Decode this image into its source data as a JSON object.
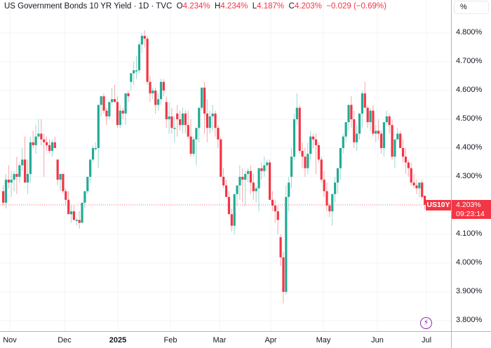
{
  "legend": {
    "title": "US Government Bonds 10 YR Yield · 1D · TVC",
    "open_label": "O",
    "open": "4.234%",
    "high_label": "H",
    "high": "4.234%",
    "low_label": "L",
    "low": "4.187%",
    "close_label": "C",
    "close": "4.203%",
    "change": "−0.029 (−0.69%)"
  },
  "scale_button": "%",
  "last_price": {
    "symbol": "US10Y",
    "price": "4.203%",
    "countdown": "09:23:14"
  },
  "colors": {
    "up": "#22ab94",
    "down": "#f23645",
    "grid": "#f0f3fa",
    "axis": "#b2b5be",
    "event": "#9c27b0"
  },
  "chart_data": {
    "type": "candlestick",
    "title": "US Government Bonds 10 YR Yield · 1D · TVC",
    "xlabel": "",
    "ylabel": "%",
    "ylim": [
      3.775,
      4.885
    ],
    "y_ticks": [
      "4.800%",
      "4.700%",
      "4.600%",
      "4.500%",
      "4.400%",
      "4.300%",
      "4.200%",
      "4.100%",
      "4.000%",
      "3.900%",
      "3.800%"
    ],
    "x_ticks": [
      {
        "label": "Nov",
        "x": 14
      },
      {
        "label": "Dec",
        "x": 92
      },
      {
        "label": "2025",
        "x": 168,
        "bold": true
      },
      {
        "label": "Feb",
        "x": 243
      },
      {
        "label": "Mar",
        "x": 313
      },
      {
        "label": "Apr",
        "x": 386
      },
      {
        "label": "May",
        "x": 461
      },
      {
        "label": "Jun",
        "x": 538
      },
      {
        "label": "Jul",
        "x": 608
      }
    ],
    "grid": true,
    "last_value": 4.203,
    "ohlc": [
      [
        4.25,
        4.27,
        4.2,
        4.21
      ],
      [
        4.21,
        4.31,
        4.19,
        4.29
      ],
      [
        4.29,
        4.34,
        4.26,
        4.28
      ],
      [
        4.28,
        4.32,
        4.23,
        4.29
      ],
      [
        4.29,
        4.32,
        4.25,
        4.31
      ],
      [
        4.31,
        4.37,
        4.24,
        4.3
      ],
      [
        4.3,
        4.35,
        4.28,
        4.34
      ],
      [
        4.34,
        4.4,
        4.32,
        4.36
      ],
      [
        4.36,
        4.44,
        4.3,
        4.28
      ],
      [
        4.28,
        4.36,
        4.24,
        4.31
      ],
      [
        4.31,
        4.44,
        4.28,
        4.42
      ],
      [
        4.42,
        4.46,
        4.4,
        4.41
      ],
      [
        4.41,
        4.48,
        4.38,
        4.44
      ],
      [
        4.44,
        4.5,
        4.43,
        4.45
      ],
      [
        4.45,
        4.5,
        4.41,
        4.43
      ],
      [
        4.43,
        4.45,
        4.3,
        4.42
      ],
      [
        4.42,
        4.44,
        4.39,
        4.41
      ],
      [
        4.41,
        4.43,
        4.38,
        4.39
      ],
      [
        4.39,
        4.43,
        4.37,
        4.42
      ],
      [
        4.42,
        4.44,
        4.41,
        4.4
      ],
      [
        4.36,
        4.36,
        4.27,
        4.29
      ],
      [
        4.29,
        4.31,
        4.25,
        4.31
      ],
      [
        4.31,
        4.31,
        4.24,
        4.25
      ],
      [
        4.25,
        4.26,
        4.2,
        4.22
      ],
      [
        4.22,
        4.25,
        4.18,
        4.17
      ],
      [
        4.17,
        4.2,
        4.14,
        4.18
      ],
      [
        4.18,
        4.2,
        4.15,
        4.15
      ],
      [
        4.15,
        4.16,
        4.13,
        4.15
      ],
      [
        4.15,
        4.18,
        4.12,
        4.14
      ],
      [
        4.14,
        4.21,
        4.14,
        4.21
      ],
      [
        4.21,
        4.24,
        4.19,
        4.25
      ],
      [
        4.25,
        4.3,
        4.24,
        4.3
      ],
      [
        4.3,
        4.34,
        4.28,
        4.36
      ],
      [
        4.36,
        4.41,
        4.35,
        4.4
      ],
      [
        4.4,
        4.42,
        4.39,
        4.4
      ],
      [
        4.4,
        4.43,
        4.33,
        4.55
      ],
      [
        4.55,
        4.58,
        4.51,
        4.58
      ],
      [
        4.58,
        4.59,
        4.52,
        4.53
      ],
      [
        4.53,
        4.54,
        4.48,
        4.51
      ],
      [
        4.51,
        4.56,
        4.5,
        4.56
      ],
      [
        4.56,
        4.61,
        4.55,
        4.57
      ],
      [
        4.57,
        4.62,
        4.56,
        4.56
      ],
      [
        4.56,
        4.58,
        4.47,
        4.48
      ],
      [
        4.48,
        4.55,
        4.47,
        4.53
      ],
      [
        4.53,
        4.54,
        4.5,
        4.52
      ],
      [
        4.52,
        4.58,
        4.48,
        4.59
      ],
      [
        4.59,
        4.6,
        4.56,
        4.58
      ],
      [
        4.63,
        4.65,
        4.6,
        4.66
      ],
      [
        4.66,
        4.7,
        4.62,
        4.67
      ],
      [
        4.67,
        4.72,
        4.64,
        4.67
      ],
      [
        4.67,
        4.77,
        4.66,
        4.76
      ],
      [
        4.76,
        4.8,
        4.73,
        4.79
      ],
      [
        4.79,
        4.81,
        4.75,
        4.78
      ],
      [
        4.78,
        4.79,
        4.62,
        4.63
      ],
      [
        4.63,
        4.65,
        4.56,
        4.59
      ],
      [
        4.59,
        4.61,
        4.57,
        4.6
      ],
      [
        4.6,
        4.61,
        4.52,
        4.55
      ],
      [
        4.55,
        4.59,
        4.53,
        4.57
      ],
      [
        4.57,
        4.64,
        4.55,
        4.63
      ],
      [
        4.63,
        4.64,
        4.58,
        4.6
      ],
      [
        4.56,
        4.58,
        4.47,
        4.5
      ],
      [
        4.5,
        4.56,
        4.45,
        4.51
      ],
      [
        4.51,
        4.54,
        4.45,
        4.47
      ],
      [
        4.47,
        4.51,
        4.42,
        4.47
      ],
      [
        4.52,
        4.55,
        4.44,
        4.5
      ],
      [
        4.5,
        4.53,
        4.46,
        4.48
      ],
      [
        4.48,
        4.54,
        4.45,
        4.52
      ],
      [
        4.52,
        4.53,
        4.45,
        4.48
      ],
      [
        4.48,
        4.53,
        4.43,
        4.44
      ],
      [
        4.44,
        4.5,
        4.37,
        4.38
      ],
      [
        4.38,
        4.44,
        4.37,
        4.43
      ],
      [
        4.43,
        4.45,
        4.34,
        4.47
      ],
      [
        4.47,
        4.53,
        4.42,
        4.54
      ],
      [
        4.54,
        4.6,
        4.53,
        4.61
      ],
      [
        4.61,
        4.63,
        4.45,
        4.52
      ],
      [
        4.52,
        4.57,
        4.42,
        4.47
      ],
      [
        4.47,
        4.53,
        4.45,
        4.51
      ],
      [
        4.51,
        4.55,
        4.46,
        4.52
      ],
      [
        4.52,
        4.53,
        4.44,
        4.47
      ],
      [
        4.47,
        4.48,
        4.4,
        4.43
      ],
      [
        4.43,
        4.44,
        4.33,
        4.3
      ],
      [
        4.3,
        4.33,
        4.26,
        4.27
      ],
      [
        4.27,
        4.29,
        4.23,
        4.23
      ],
      [
        4.23,
        4.25,
        4.17,
        4.17
      ],
      [
        4.17,
        4.19,
        4.11,
        4.13
      ],
      [
        4.13,
        4.2,
        4.1,
        4.24
      ],
      [
        4.24,
        4.27,
        4.2,
        4.27
      ],
      [
        4.27,
        4.34,
        4.22,
        4.3
      ],
      [
        4.3,
        4.33,
        4.21,
        4.29
      ],
      [
        4.29,
        4.32,
        4.2,
        4.31
      ],
      [
        4.31,
        4.33,
        4.28,
        4.32
      ],
      [
        4.32,
        4.34,
        4.24,
        4.28
      ],
      [
        4.28,
        4.31,
        4.22,
        4.25
      ],
      [
        4.25,
        4.27,
        4.21,
        4.26
      ],
      [
        4.26,
        4.3,
        4.18,
        4.33
      ],
      [
        4.33,
        4.35,
        4.29,
        4.32
      ],
      [
        4.32,
        4.37,
        4.3,
        4.34
      ],
      [
        4.34,
        4.36,
        4.32,
        4.35
      ],
      [
        4.35,
        4.36,
        4.24,
        4.22
      ],
      [
        4.22,
        4.25,
        4.18,
        4.2
      ],
      [
        4.2,
        4.22,
        4.14,
        4.18
      ],
      [
        4.18,
        4.2,
        4.1,
        4.15
      ],
      [
        4.09,
        4.1,
        3.99,
        4.02
      ],
      [
        4.02,
        4.04,
        3.86,
        3.9
      ],
      [
        3.9,
        4.27,
        3.89,
        4.23
      ],
      [
        4.23,
        4.3,
        4.18,
        4.28
      ],
      [
        4.3,
        4.4,
        4.26,
        4.37
      ],
      [
        4.37,
        4.52,
        4.36,
        4.5
      ],
      [
        4.5,
        4.59,
        4.48,
        4.54
      ],
      [
        4.54,
        4.55,
        4.38,
        4.39
      ],
      [
        4.39,
        4.42,
        4.33,
        4.37
      ],
      [
        4.37,
        4.4,
        4.3,
        4.33
      ],
      [
        4.33,
        4.42,
        4.31,
        4.38
      ],
      [
        4.38,
        4.46,
        4.36,
        4.44
      ],
      [
        4.44,
        4.45,
        4.4,
        4.43
      ],
      [
        4.43,
        4.45,
        4.31,
        4.41
      ],
      [
        4.41,
        4.42,
        4.35,
        4.36
      ],
      [
        4.36,
        4.37,
        4.28,
        4.29
      ],
      [
        4.29,
        4.32,
        4.23,
        4.25
      ],
      [
        4.25,
        4.28,
        4.18,
        4.2
      ],
      [
        4.2,
        4.21,
        4.16,
        4.18
      ],
      [
        4.18,
        4.23,
        4.13,
        4.24
      ],
      [
        4.24,
        4.3,
        4.21,
        4.28
      ],
      [
        4.28,
        4.33,
        4.24,
        4.33
      ],
      [
        4.33,
        4.37,
        4.29,
        4.4
      ],
      [
        4.4,
        4.45,
        4.38,
        4.44
      ],
      [
        4.44,
        4.49,
        4.42,
        4.49
      ],
      [
        4.49,
        4.55,
        4.46,
        4.55
      ],
      [
        4.55,
        4.58,
        4.47,
        4.5
      ],
      [
        4.5,
        4.53,
        4.4,
        4.42
      ],
      [
        4.42,
        4.48,
        4.39,
        4.45
      ],
      [
        4.45,
        4.52,
        4.43,
        4.52
      ],
      [
        4.52,
        4.6,
        4.47,
        4.59
      ],
      [
        4.59,
        4.63,
        4.54,
        4.54
      ],
      [
        4.54,
        4.55,
        4.47,
        4.49
      ],
      [
        4.49,
        4.54,
        4.46,
        4.53
      ],
      [
        4.53,
        4.55,
        4.44,
        4.45
      ],
      [
        4.45,
        4.48,
        4.42,
        4.46
      ],
      [
        4.46,
        4.5,
        4.43,
        4.45
      ],
      [
        4.45,
        4.46,
        4.38,
        4.4
      ],
      [
        4.4,
        4.48,
        4.37,
        4.49
      ],
      [
        4.49,
        4.53,
        4.48,
        4.51
      ],
      [
        4.51,
        4.52,
        4.45,
        4.48
      ],
      [
        4.48,
        4.5,
        4.36,
        4.37
      ],
      [
        4.37,
        4.41,
        4.33,
        4.43
      ],
      [
        4.43,
        4.47,
        4.43,
        4.45
      ],
      [
        4.45,
        4.46,
        4.4,
        4.4
      ],
      [
        4.4,
        4.43,
        4.35,
        4.37
      ],
      [
        4.37,
        4.4,
        4.31,
        4.35
      ],
      [
        4.35,
        4.36,
        4.3,
        4.33
      ],
      [
        4.33,
        4.35,
        4.27,
        4.28
      ],
      [
        4.28,
        4.31,
        4.26,
        4.27
      ],
      [
        4.27,
        4.29,
        4.24,
        4.26
      ],
      [
        4.26,
        4.28,
        4.23,
        4.28
      ],
      [
        4.28,
        4.29,
        4.22,
        4.23
      ],
      [
        4.234,
        4.234,
        4.187,
        4.203
      ]
    ]
  }
}
